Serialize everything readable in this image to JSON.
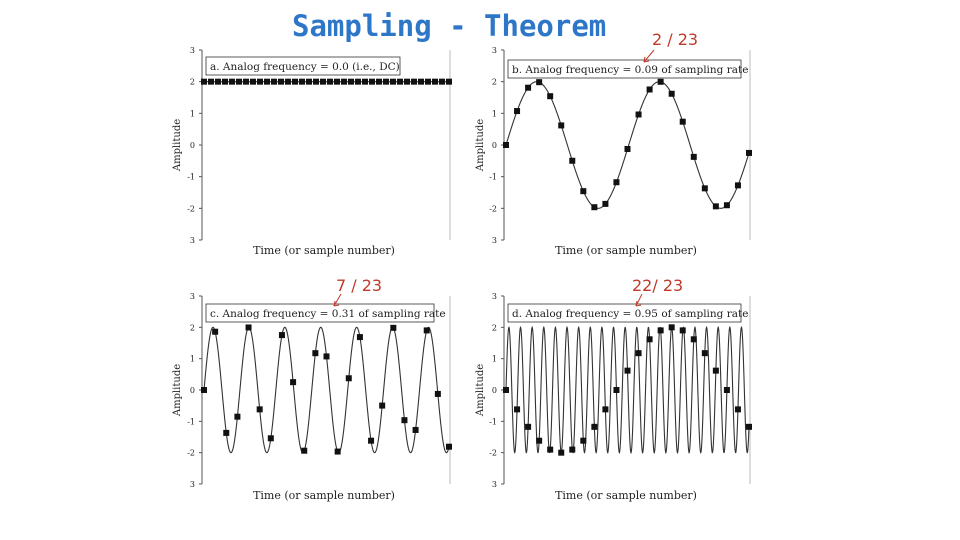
{
  "slide": {
    "title": "Sampling - Theorem",
    "notes": [
      "2 / 23",
      "7 / 23",
      "22/ 23"
    ],
    "accent_title": "#2e77c8",
    "accent_notes": "#c0392b"
  },
  "chart_data": [
    {
      "type": "line",
      "panel": "a",
      "annotation": "a.  Analog frequency = 0.0  (i.e., DC)",
      "xlabel": "Time (or sample number)",
      "ylabel": "Amplitude",
      "yticks": [
        "3",
        "2",
        "1",
        "0",
        "-1",
        "-2",
        "3"
      ],
      "ylim": [
        -3,
        3
      ],
      "frequency": 0.0,
      "samples": 36,
      "series": [
        {
          "kind": "analog",
          "amplitude": 2,
          "cycles_per_sample": 0.0,
          "dc": true
        },
        {
          "kind": "samples",
          "marker": "square",
          "values": [
            2,
            2,
            2,
            2,
            2,
            2,
            2,
            2,
            2,
            2,
            2,
            2,
            2,
            2,
            2,
            2,
            2,
            2,
            2,
            2,
            2,
            2,
            2,
            2,
            2,
            2,
            2,
            2,
            2,
            2,
            2,
            2,
            2,
            2,
            2,
            2
          ]
        }
      ],
      "grid": false
    },
    {
      "type": "line",
      "panel": "b",
      "annotation": "b.  Analog frequency = 0.09 of sampling rate",
      "xlabel": "Time (or sample number)",
      "ylabel": "Amplitude",
      "yticks": [
        "3",
        "2",
        "1",
        "0",
        "-1",
        "-2",
        "3"
      ],
      "ylim": [
        -3,
        3
      ],
      "frequency": 0.09,
      "samples": 23,
      "series": [
        {
          "kind": "analog",
          "amplitude": 2,
          "cycles_per_sample": 0.09
        },
        {
          "kind": "samples",
          "marker": "square",
          "count": 23
        }
      ],
      "grid": false
    },
    {
      "type": "line",
      "panel": "c",
      "annotation": "c.  Analog frequency = 0.31 of sampling rate",
      "xlabel": "Time (or sample number)",
      "ylabel": "Amplitude",
      "yticks": [
        "3",
        "2",
        "1",
        "0",
        "-1",
        "-2",
        "3"
      ],
      "ylim": [
        -3,
        3
      ],
      "frequency": 0.31,
      "samples": 23,
      "series": [
        {
          "kind": "analog",
          "amplitude": 2,
          "cycles_per_sample": 0.31
        },
        {
          "kind": "samples",
          "marker": "square",
          "count": 23
        }
      ],
      "grid": false
    },
    {
      "type": "line",
      "panel": "d",
      "annotation": "d.  Analog frequency = 0.95 of sampling rate",
      "xlabel": "Time (or sample number)",
      "ylabel": "Amplitude",
      "yticks": [
        "3",
        "2",
        "1",
        "0",
        "-1",
        "-2",
        "3"
      ],
      "ylim": [
        -3,
        3
      ],
      "frequency": 0.95,
      "samples": 23,
      "series": [
        {
          "kind": "analog",
          "amplitude": 2,
          "cycles_per_sample": 0.95
        },
        {
          "kind": "samples",
          "marker": "square",
          "count": 23
        }
      ],
      "grid": false
    }
  ]
}
